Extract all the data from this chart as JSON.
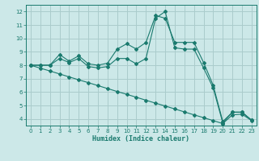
{
  "title": "",
  "xlabel": "Humidex (Indice chaleur)",
  "bg_color": "#cce8e8",
  "grid_color": "#aacccc",
  "line_color": "#1a7a6e",
  "xlim": [
    -0.5,
    23.5
  ],
  "ylim": [
    3.5,
    12.5
  ],
  "xticks": [
    0,
    1,
    2,
    3,
    4,
    5,
    6,
    7,
    8,
    9,
    10,
    11,
    12,
    13,
    14,
    15,
    16,
    17,
    18,
    19,
    20,
    21,
    22,
    23
  ],
  "yticks": [
    4,
    5,
    6,
    7,
    8,
    9,
    10,
    11,
    12
  ],
  "line1_x": [
    0,
    1,
    2,
    3,
    4,
    5,
    6,
    7,
    8,
    9,
    10,
    11,
    12,
    13,
    14,
    15,
    16,
    17,
    18,
    19,
    20,
    21,
    22,
    23
  ],
  "line1_y": [
    8.0,
    8.0,
    8.0,
    8.8,
    8.3,
    8.7,
    8.1,
    8.0,
    8.15,
    9.2,
    9.6,
    9.2,
    9.7,
    11.7,
    11.5,
    9.7,
    9.7,
    9.7,
    8.2,
    6.5,
    3.8,
    4.5,
    4.5,
    3.9
  ],
  "line2_x": [
    0,
    1,
    2,
    3,
    4,
    5,
    6,
    7,
    8,
    9,
    10,
    11,
    12,
    13,
    14,
    15,
    16,
    17,
    18,
    19,
    20,
    21,
    22,
    23
  ],
  "line2_y": [
    8.0,
    8.0,
    8.0,
    8.5,
    8.2,
    8.5,
    7.9,
    7.8,
    7.9,
    8.5,
    8.5,
    8.1,
    8.5,
    11.5,
    12.0,
    9.3,
    9.2,
    9.2,
    7.8,
    6.3,
    3.7,
    4.5,
    4.5,
    3.9
  ],
  "line3_x": [
    0,
    1,
    2,
    3,
    4,
    5,
    6,
    7,
    8,
    9,
    10,
    11,
    12,
    13,
    14,
    15,
    16,
    17,
    18,
    19,
    20,
    21,
    22,
    23
  ],
  "line3_y": [
    8.0,
    7.78,
    7.57,
    7.35,
    7.13,
    6.91,
    6.7,
    6.48,
    6.26,
    6.04,
    5.83,
    5.61,
    5.39,
    5.17,
    4.96,
    4.74,
    4.52,
    4.3,
    4.09,
    3.87,
    3.65,
    4.3,
    4.35,
    3.87
  ]
}
